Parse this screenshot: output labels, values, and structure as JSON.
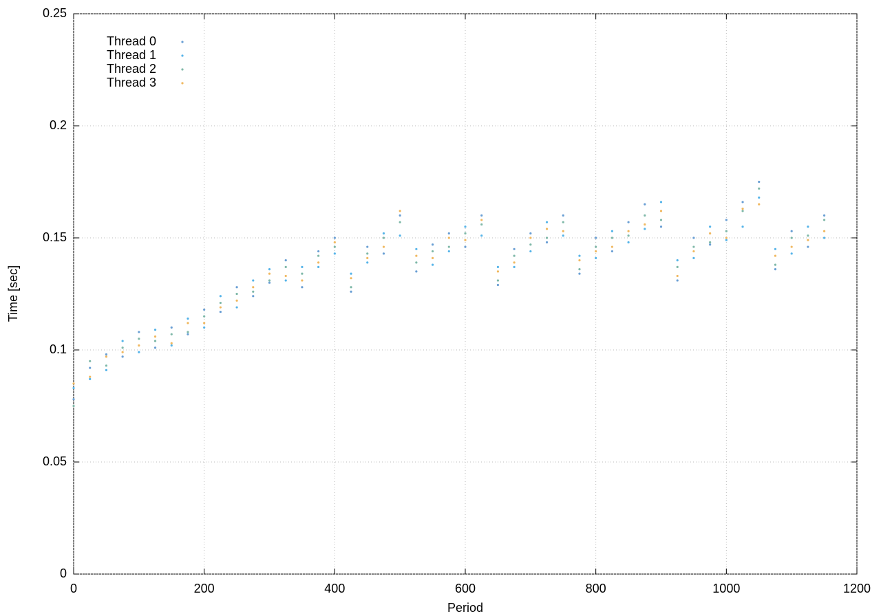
{
  "chart_data": {
    "type": "scatter",
    "xlabel": "Period",
    "ylabel": "Time [sec]",
    "x": [
      0,
      25,
      50,
      75,
      100,
      125,
      150,
      175,
      200,
      225,
      250,
      275,
      300,
      325,
      350,
      375,
      400,
      425,
      450,
      475,
      500,
      525,
      550,
      575,
      600,
      625,
      650,
      675,
      700,
      725,
      750,
      775,
      800,
      825,
      850,
      875,
      900,
      925,
      950,
      975,
      1000,
      1025,
      1050,
      1075,
      1100,
      1125,
      1150
    ],
    "series": [
      {
        "name": "Thread 0",
        "color": "#6a9fd4",
        "values": [
          0.078,
          0.092,
          0.098,
          0.097,
          0.108,
          0.101,
          0.11,
          0.107,
          0.118,
          0.117,
          0.128,
          0.124,
          0.13,
          0.14,
          0.128,
          0.144,
          0.15,
          0.126,
          0.146,
          0.143,
          0.16,
          0.135,
          0.147,
          0.152,
          0.146,
          0.16,
          0.129,
          0.145,
          0.152,
          0.148,
          0.16,
          0.134,
          0.15,
          0.144,
          0.157,
          0.165,
          0.155,
          0.131,
          0.15,
          0.147,
          0.158,
          0.166,
          0.175,
          0.136,
          0.153,
          0.146,
          0.16
        ]
      },
      {
        "name": "Thread 1",
        "color": "#56b4e9",
        "values": [
          0.083,
          0.087,
          0.091,
          0.104,
          0.099,
          0.109,
          0.102,
          0.114,
          0.11,
          0.124,
          0.119,
          0.131,
          0.136,
          0.131,
          0.137,
          0.137,
          0.143,
          0.134,
          0.139,
          0.152,
          0.151,
          0.145,
          0.138,
          0.144,
          0.155,
          0.151,
          0.137,
          0.137,
          0.144,
          0.157,
          0.151,
          0.142,
          0.141,
          0.153,
          0.148,
          0.154,
          0.166,
          0.14,
          0.141,
          0.155,
          0.149,
          0.155,
          0.168,
          0.145,
          0.143,
          0.155,
          0.15
        ]
      },
      {
        "name": "Thread 2",
        "color": "#7fb8a8",
        "values": [
          0.075,
          0.095,
          0.093,
          0.101,
          0.105,
          0.104,
          0.107,
          0.108,
          0.115,
          0.121,
          0.125,
          0.126,
          0.131,
          0.137,
          0.134,
          0.142,
          0.146,
          0.128,
          0.143,
          0.15,
          0.157,
          0.139,
          0.144,
          0.146,
          0.152,
          0.156,
          0.131,
          0.142,
          0.147,
          0.15,
          0.157,
          0.136,
          0.146,
          0.15,
          0.151,
          0.16,
          0.158,
          0.137,
          0.146,
          0.148,
          0.153,
          0.162,
          0.172,
          0.138,
          0.15,
          0.151,
          0.158
        ]
      },
      {
        "name": "Thread 3",
        "color": "#f0b860",
        "values": [
          0.085,
          0.088,
          0.097,
          0.099,
          0.102,
          0.106,
          0.103,
          0.112,
          0.112,
          0.119,
          0.122,
          0.128,
          0.134,
          0.133,
          0.131,
          0.139,
          0.148,
          0.132,
          0.141,
          0.146,
          0.162,
          0.142,
          0.141,
          0.15,
          0.149,
          0.158,
          0.135,
          0.139,
          0.15,
          0.154,
          0.153,
          0.14,
          0.144,
          0.146,
          0.153,
          0.156,
          0.162,
          0.133,
          0.144,
          0.152,
          0.15,
          0.163,
          0.165,
          0.142,
          0.146,
          0.149,
          0.153
        ]
      }
    ],
    "xlim": [
      0,
      1200
    ],
    "xticks": [
      0,
      200,
      400,
      600,
      800,
      1000,
      1200
    ],
    "ylim": [
      0,
      0.25
    ],
    "yticks": [
      0,
      0.05,
      0.1,
      0.15,
      0.2,
      0.25
    ],
    "grid": true,
    "legend": "top-left"
  }
}
